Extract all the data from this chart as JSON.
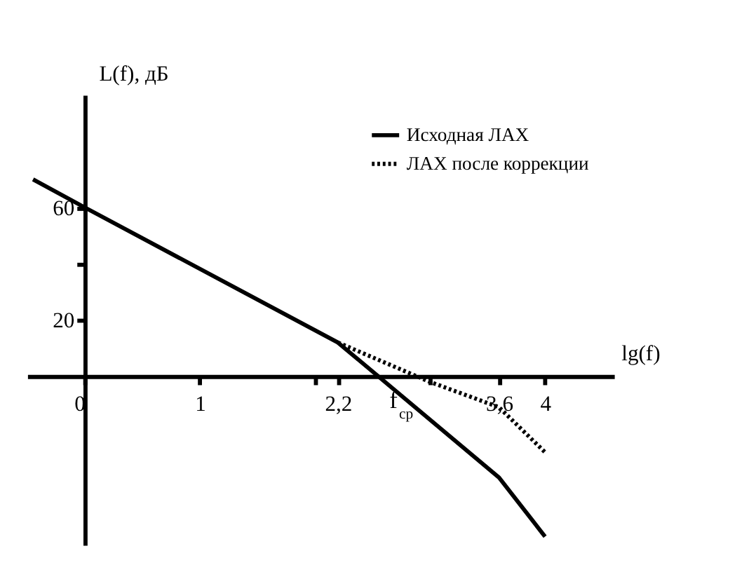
{
  "chart_data": {
    "type": "line",
    "xlabel": "lg(f)",
    "ylabel": "L(f), дБ",
    "xlim": [
      -0.5,
      4.6
    ],
    "ylim": [
      -60,
      100
    ],
    "xticks": [
      0,
      1,
      {
        "value": 2,
        "label": null
      },
      {
        "value": 2.2,
        "label": "2,2"
      },
      {
        "value": 3,
        "label": null
      },
      {
        "value": 3.6,
        "label": "3,6"
      },
      4
    ],
    "yticks": [
      20,
      {
        "value": 40,
        "label": null
      },
      60
    ],
    "series": [
      {
        "name": "Исходная ЛАХ",
        "color": "#000000",
        "line_style": "solid",
        "x": [
          -0.45,
          0,
          2.2,
          3.6,
          4
        ],
        "values": [
          70,
          60,
          12,
          -36,
          -57
        ]
      },
      {
        "name": "ЛАХ после коррекции",
        "color": "#000000",
        "line_style": "dotted",
        "x": [
          2.2,
          3,
          3.6,
          4
        ],
        "values": [
          12,
          -2,
          -11,
          -27
        ]
      }
    ],
    "annotations": [
      {
        "text": "f$_{ср}$",
        "x": 2.6,
        "y": 0
      }
    ],
    "legend": "top right",
    "grid": false,
    "marker": "none"
  }
}
